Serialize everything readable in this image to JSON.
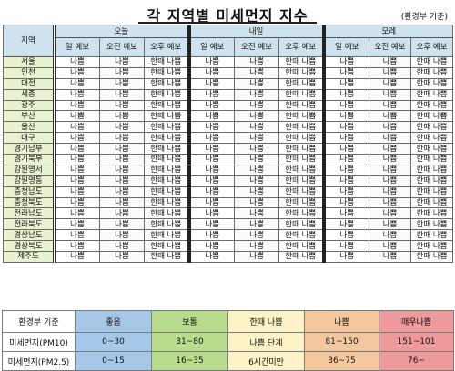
{
  "title": "각 지역별 미세먼지 지수",
  "source": "(환경부 기준)",
  "header": {
    "region_label": "지역",
    "days": [
      "오늘",
      "내일",
      "모레"
    ],
    "subcolumns": [
      "일 예보",
      "오전 예보",
      "오후 예보"
    ]
  },
  "rows": [
    {
      "region": "서울",
      "values": [
        "나쁨",
        "나쁨",
        "한때 나쁨",
        "나쁨",
        "나쁨",
        "한때 나쁨",
        "나쁨",
        "나쁨",
        "한때 나쁨"
      ]
    },
    {
      "region": "인천",
      "values": [
        "나쁨",
        "나쁨",
        "한때 나쁨",
        "나쁨",
        "나쁨",
        "한때 나쁨",
        "나쁨",
        "나쁨",
        "한때 나쁨"
      ]
    },
    {
      "region": "대전",
      "values": [
        "나쁨",
        "나쁨",
        "한때 나쁨",
        "나쁨",
        "나쁨",
        "한때 나쁨",
        "나쁨",
        "나쁨",
        "한때 나쁨"
      ]
    },
    {
      "region": "세종",
      "values": [
        "나쁨",
        "나쁨",
        "한때 나쁨",
        "나쁨",
        "나쁨",
        "한때 나쁨",
        "나쁨",
        "나쁨",
        "한때 나쁨"
      ]
    },
    {
      "region": "광주",
      "values": [
        "나쁨",
        "나쁨",
        "한때 나쁨",
        "나쁨",
        "나쁨",
        "한때 나쁨",
        "나쁨",
        "나쁨",
        "한때 나쁨"
      ]
    },
    {
      "region": "부산",
      "values": [
        "나쁨",
        "나쁨",
        "한때 나쁨",
        "나쁨",
        "나쁨",
        "한때 나쁨",
        "나쁨",
        "나쁨",
        "한때 나쁨"
      ]
    },
    {
      "region": "울산",
      "values": [
        "나쁨",
        "나쁨",
        "한때 나쁨",
        "나쁨",
        "나쁨",
        "한때 나쁨",
        "나쁨",
        "나쁨",
        "한때 나쁨"
      ]
    },
    {
      "region": "대구",
      "values": [
        "나쁨",
        "나쁨",
        "한때 나쁨",
        "나쁨",
        "나쁨",
        "한때 나쁨",
        "나쁨",
        "나쁨",
        "한때 나쁨"
      ]
    },
    {
      "region": "경기남부",
      "values": [
        "나쁨",
        "나쁨",
        "한때 나쁨",
        "나쁨",
        "나쁨",
        "한때 나쁨",
        "나쁨",
        "나쁨",
        "한때 나쁨"
      ]
    },
    {
      "region": "경기북부",
      "values": [
        "나쁨",
        "나쁨",
        "한때 나쁨",
        "나쁨",
        "나쁨",
        "한때 나쁨",
        "나쁨",
        "나쁨",
        "한때 나쁨"
      ]
    },
    {
      "region": "강원영서",
      "values": [
        "나쁨",
        "나쁨",
        "한때 나쁨",
        "나쁨",
        "나쁨",
        "한때 나쁨",
        "나쁨",
        "나쁨",
        "한때 나쁨"
      ]
    },
    {
      "region": "강원영동",
      "values": [
        "나쁨",
        "나쁨",
        "한때 나쁨",
        "나쁨",
        "나쁨",
        "한때 나쁨",
        "나쁨",
        "나쁨",
        "한때 나쁨"
      ]
    },
    {
      "region": "충청남도",
      "values": [
        "나쁨",
        "나쁨",
        "한때 나쁨",
        "나쁨",
        "나쁨",
        "한때 나쁨",
        "나쁨",
        "나쁨",
        "한때 나쁨"
      ]
    },
    {
      "region": "충청북도",
      "values": [
        "나쁨",
        "나쁨",
        "한때 나쁨",
        "나쁨",
        "나쁨",
        "한때 나쁨",
        "나쁨",
        "나쁨",
        "한때 나쁨"
      ]
    },
    {
      "region": "전라남도",
      "values": [
        "나쁨",
        "나쁨",
        "한때 나쁨",
        "나쁨",
        "나쁨",
        "한때 나쁨",
        "나쁨",
        "나쁨",
        "한때 나쁨"
      ]
    },
    {
      "region": "전라북도",
      "values": [
        "나쁨",
        "나쁨",
        "한때 나쁨",
        "나쁨",
        "나쁨",
        "한때 나쁨",
        "나쁨",
        "나쁨",
        "한때 나쁨"
      ]
    },
    {
      "region": "경상남도",
      "values": [
        "나쁨",
        "나쁨",
        "한때 나쁨",
        "나쁨",
        "나쁨",
        "한때 나쁨",
        "나쁨",
        "나쁨",
        "한때 나쁨"
      ]
    },
    {
      "region": "경상북도",
      "values": [
        "나쁨",
        "나쁨",
        "한때 나쁨",
        "나쁨",
        "나쁨",
        "한때 나쁨",
        "나쁨",
        "나쁨",
        "한때 나쁨"
      ]
    },
    {
      "region": "제주도",
      "values": [
        "나쁨",
        "나쁨",
        "한때 나쁨",
        "나쁨",
        "나쁨",
        "한때 나쁨",
        "나쁨",
        "나쁨",
        "한때 나쁨"
      ]
    }
  ],
  "legend": {
    "header_label": "환경부 기준",
    "grades": [
      {
        "label": "좋음",
        "color": "#a6c8e8"
      },
      {
        "label": "보통",
        "color": "#b7dc8e"
      },
      {
        "label": "한때 나쁨",
        "color": "#fbf3c6"
      },
      {
        "label": "나쁨",
        "color": "#f4c89f"
      },
      {
        "label": "매우나쁨",
        "color": "#ee9a9a"
      }
    ],
    "pm10": {
      "label": "미세먼지(PM10)",
      "good": "0~30",
      "normal": "31~80",
      "bad": "81~150",
      "verybad": "151~101"
    },
    "pm25": {
      "label": "미세먼지(PM2.5)",
      "good": "0~15",
      "normal": "16~35",
      "bad": "36~75",
      "verybad": "76~"
    },
    "caution_line1": "나쁨 단계",
    "caution_line2": "6시간미만"
  }
}
